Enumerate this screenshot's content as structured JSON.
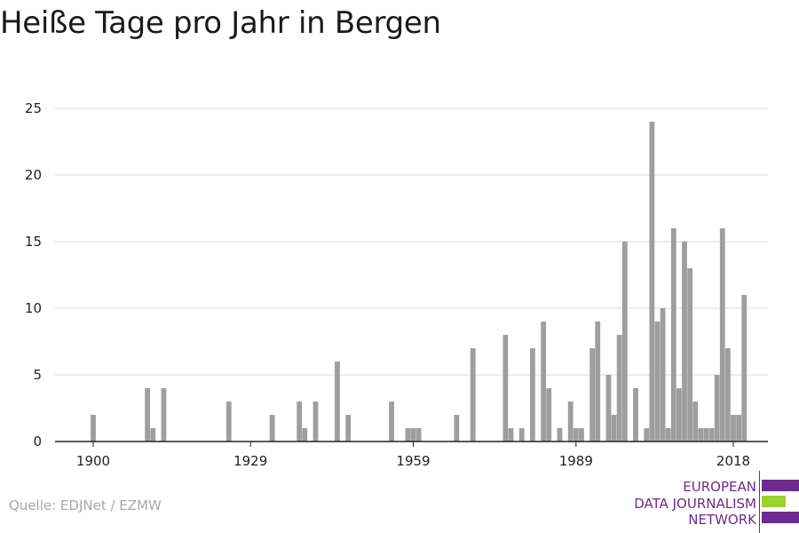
{
  "title": "Heiße Tage pro Jahr in Bergen",
  "source": "Quelle: EDJNet / EZMW",
  "logo": {
    "lines": [
      "EUROPEAN",
      "DATA JOURNALISM",
      "NETWORK"
    ],
    "colors": {
      "text": "#6f2b8e",
      "bar1": "#6f2b8e",
      "bar2": "#9ad22f",
      "bar3": "#6f2b8e"
    }
  },
  "chart_data": {
    "type": "bar",
    "title": "Heiße Tage pro Jahr in Bergen",
    "xlabel": "",
    "ylabel": "",
    "x_ticks": [
      1900,
      1929,
      1959,
      1989,
      2018
    ],
    "y_ticks": [
      0,
      5,
      10,
      15,
      20,
      25
    ],
    "ylim": [
      0,
      25
    ],
    "xlim": [
      1894,
      2024
    ],
    "grid": true,
    "bar_color": "#9e9e9e",
    "series": [
      {
        "values": [
          {
            "x": 1900,
            "y": 2
          },
          {
            "x": 1910,
            "y": 4
          },
          {
            "x": 1911,
            "y": 1
          },
          {
            "x": 1913,
            "y": 4
          },
          {
            "x": 1925,
            "y": 3
          },
          {
            "x": 1933,
            "y": 2
          },
          {
            "x": 1938,
            "y": 3
          },
          {
            "x": 1939,
            "y": 1
          },
          {
            "x": 1941,
            "y": 3
          },
          {
            "x": 1945,
            "y": 6
          },
          {
            "x": 1947,
            "y": 2
          },
          {
            "x": 1955,
            "y": 3
          },
          {
            "x": 1958,
            "y": 1
          },
          {
            "x": 1959,
            "y": 1
          },
          {
            "x": 1960,
            "y": 1
          },
          {
            "x": 1967,
            "y": 2
          },
          {
            "x": 1970,
            "y": 7
          },
          {
            "x": 1976,
            "y": 8
          },
          {
            "x": 1977,
            "y": 1
          },
          {
            "x": 1979,
            "y": 1
          },
          {
            "x": 1981,
            "y": 7
          },
          {
            "x": 1983,
            "y": 9
          },
          {
            "x": 1984,
            "y": 4
          },
          {
            "x": 1986,
            "y": 1
          },
          {
            "x": 1988,
            "y": 3
          },
          {
            "x": 1989,
            "y": 1
          },
          {
            "x": 1990,
            "y": 1
          },
          {
            "x": 1992,
            "y": 7
          },
          {
            "x": 1993,
            "y": 9
          },
          {
            "x": 1995,
            "y": 5
          },
          {
            "x": 1996,
            "y": 2
          },
          {
            "x": 1997,
            "y": 8
          },
          {
            "x": 1998,
            "y": 15
          },
          {
            "x": 2000,
            "y": 4
          },
          {
            "x": 2002,
            "y": 1
          },
          {
            "x": 2003,
            "y": 24
          },
          {
            "x": 2004,
            "y": 9
          },
          {
            "x": 2005,
            "y": 10
          },
          {
            "x": 2006,
            "y": 1
          },
          {
            "x": 2007,
            "y": 16
          },
          {
            "x": 2008,
            "y": 4
          },
          {
            "x": 2009,
            "y": 15
          },
          {
            "x": 2010,
            "y": 13
          },
          {
            "x": 2011,
            "y": 3
          },
          {
            "x": 2012,
            "y": 1
          },
          {
            "x": 2013,
            "y": 1
          },
          {
            "x": 2014,
            "y": 1
          },
          {
            "x": 2015,
            "y": 5
          },
          {
            "x": 2016,
            "y": 16
          },
          {
            "x": 2017,
            "y": 7
          },
          {
            "x": 2018,
            "y": 2
          },
          {
            "x": 2019,
            "y": 2
          },
          {
            "x": 2020,
            "y": 11
          }
        ]
      }
    ]
  }
}
